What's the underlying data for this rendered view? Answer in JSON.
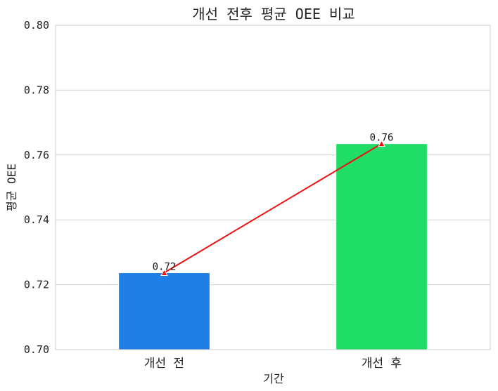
{
  "chart_data": {
    "type": "bar",
    "title": "개선 전후 평균 OEE 비교",
    "xlabel": "기간",
    "ylabel": "평균 OEE",
    "categories": [
      "개선 전",
      "개선 후"
    ],
    "values": [
      0.7237,
      0.7635
    ],
    "value_labels": [
      "0.72",
      "0.76"
    ],
    "bar_colors": [
      "#1f7fe5",
      "#1fdd66"
    ],
    "line_color": "#ee1111",
    "ylim": [
      0.7,
      0.8
    ],
    "yticks": [
      "0.70",
      "0.72",
      "0.74",
      "0.76",
      "0.78",
      "0.80"
    ],
    "grid": true,
    "overlay_line": true
  }
}
